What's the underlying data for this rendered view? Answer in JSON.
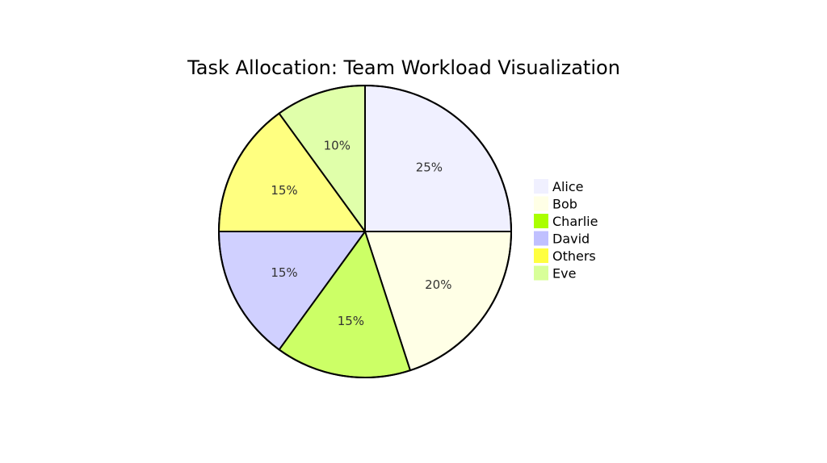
{
  "chart_data": {
    "type": "pie",
    "title": "Task Allocation: Team Workload Visualization",
    "legend_placement": "right",
    "start_angle": "12 o'clock",
    "direction": "clockwise",
    "slices": [
      {
        "label": "Alice",
        "value": 25,
        "text": "25%",
        "color": "#F0F0FF"
      },
      {
        "label": "Bob",
        "value": 20,
        "text": "20%",
        "color": "#FFFFE6"
      },
      {
        "label": "Charlie",
        "value": 15,
        "text": "15%",
        "color": "#CCFF66"
      },
      {
        "label": "David",
        "value": 15,
        "text": "15%",
        "color": "#D0D0FF"
      },
      {
        "label": "Others",
        "value": 15,
        "text": "15%",
        "color": "#FFFF80"
      },
      {
        "label": "Eve",
        "value": 10,
        "text": "10%",
        "color": "#E0FFAA"
      }
    ],
    "legend": [
      {
        "label": "Alice",
        "color": "#F0F0FF"
      },
      {
        "label": "Bob",
        "color": "#FFFFE6"
      },
      {
        "label": "Charlie",
        "color": "#AAFF00"
      },
      {
        "label": "David",
        "color": "#C0C0FF"
      },
      {
        "label": "Others",
        "color": "#FFFF40"
      },
      {
        "label": "Eve",
        "color": "#D8FF99"
      }
    ]
  }
}
